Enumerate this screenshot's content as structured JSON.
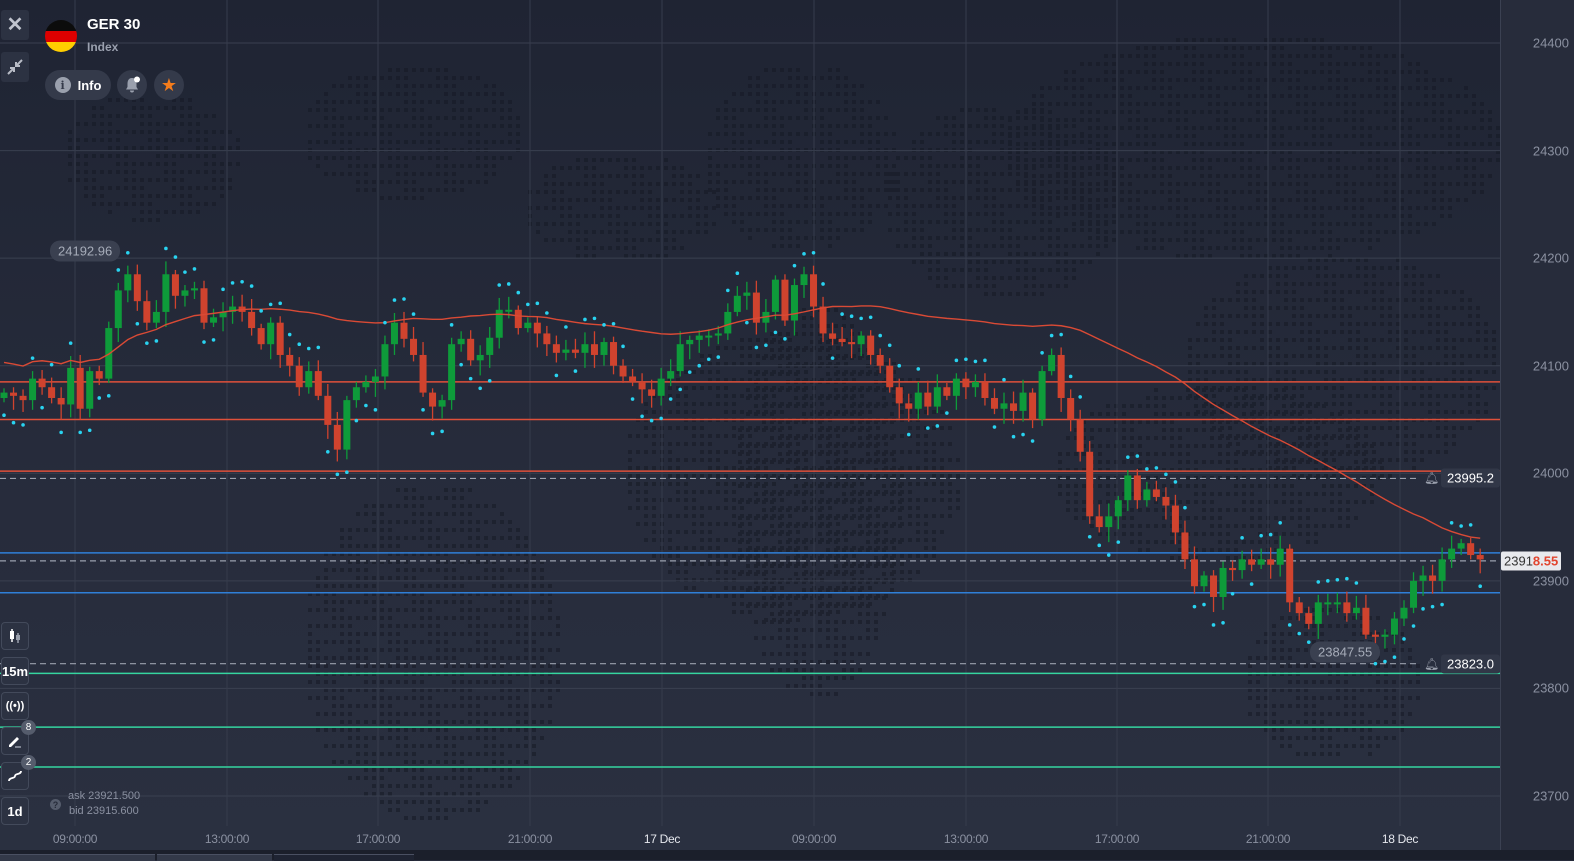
{
  "header": {
    "title": "GER 30",
    "subtitle": "Index",
    "info_label": "Info",
    "flag": "germany-flag"
  },
  "left_toolbar": {
    "close_icon": "×",
    "collapse_icon": "collapse-arrows",
    "chart_type_icon": "candlestick",
    "timeframe": "15m",
    "signals_icon": "((•))",
    "drawings_badge": "8",
    "indicators_badge": "2",
    "period": "1d"
  },
  "quote": {
    "ask_label": "ask 23921.500",
    "bid_label": "bid 23915.600",
    "help_icon": "?"
  },
  "current_price": {
    "prefix": "2391",
    "accent": "8.55",
    "value": 23918.55
  },
  "alerts": [
    {
      "label": "23995.2",
      "value": 23995.2
    },
    {
      "label": "23823.0",
      "value": 23823.0
    }
  ],
  "high_low_tags": {
    "high": {
      "label": "24192.96",
      "value": 24192.96
    },
    "low": {
      "label": "23847.55",
      "value": 23847.55
    }
  },
  "price_axis": {
    "ticks": [
      "24400",
      "24300",
      "24200",
      "24100",
      "24000",
      "23900",
      "23800",
      "23700"
    ]
  },
  "time_axis": {
    "ticks": [
      {
        "label": "09:00:00",
        "x": 75,
        "bold": false
      },
      {
        "label": "13:00:00",
        "x": 227,
        "bold": false
      },
      {
        "label": "17:00:00",
        "x": 378,
        "bold": false
      },
      {
        "label": "21:00:00",
        "x": 530,
        "bold": false
      },
      {
        "label": "17 Dec",
        "x": 662,
        "bold": true
      },
      {
        "label": "09:00:00",
        "x": 814,
        "bold": false
      },
      {
        "label": "13:00:00",
        "x": 966,
        "bold": false
      },
      {
        "label": "17:00:00",
        "x": 1117,
        "bold": false
      },
      {
        "label": "21:00:00",
        "x": 1268,
        "bold": false
      },
      {
        "label": "18 Dec",
        "x": 1400,
        "bold": true
      }
    ]
  },
  "colors": {
    "up": "#0e9b3a",
    "down": "#d0432e",
    "sar": "#29d3f0",
    "ma": "#d94a35",
    "res_line": "#e0503a",
    "blue_line": "#2f7fd8",
    "green_line": "#35d6a0"
  },
  "horizontal_lines": {
    "red": [
      24085,
      24050,
      24002
    ],
    "blue": [
      23926,
      23889
    ],
    "green": [
      23814,
      23764,
      23727
    ]
  },
  "chart_data": {
    "type": "candlestick",
    "title": "GER 30",
    "ylim": [
      23675,
      24440
    ],
    "y_ticks": [
      24400,
      24300,
      24200,
      24100,
      24000,
      23900,
      23800,
      23700
    ],
    "x_ticks": [
      "09:00:00",
      "13:00:00",
      "17:00:00",
      "21:00:00",
      "17 Dec",
      "09:00:00",
      "13:00:00",
      "17:00:00",
      "21:00:00",
      "18 Dec"
    ],
    "indicators": [
      "Moving Average",
      "Parabolic SAR"
    ],
    "closes": [
      24075,
      24072,
      24068,
      24088,
      24080,
      24070,
      24064,
      24098,
      24060,
      24095,
      24088,
      24135,
      24170,
      24185,
      24160,
      24140,
      24150,
      24185,
      24165,
      24170,
      24172,
      24140,
      24145,
      24150,
      24155,
      24150,
      24135,
      24120,
      24140,
      24110,
      24100,
      24080,
      24095,
      24072,
      24045,
      24022,
      24068,
      24080,
      24085,
      24090,
      24120,
      24140,
      24125,
      24110,
      24075,
      24062,
      24068,
      24120,
      24125,
      24105,
      24110,
      24126,
      24152,
      24152,
      24135,
      24140,
      24130,
      24120,
      24112,
      24115,
      24112,
      24120,
      24110,
      24122,
      24100,
      24090,
      24085,
      24078,
      24072,
      24088,
      24095,
      24120,
      24124,
      24128,
      24128,
      24130,
      24150,
      24165,
      24168,
      24140,
      24150,
      24180,
      24142,
      24175,
      24185,
      24155,
      24130,
      24125,
      24122,
      24120,
      24128,
      24110,
      24100,
      24080,
      24065,
      24060,
      24075,
      24062,
      24080,
      24072,
      24088,
      24080,
      24085,
      24070,
      24060,
      24065,
      24058,
      24075,
      24050,
      24095,
      24110,
      24070,
      24050,
      24020,
      23960,
      23950,
      23960,
      23975,
      23998,
      23975,
      23985,
      23978,
      23970,
      23945,
      23920,
      23895,
      23905,
      23885,
      23912,
      23910,
      23920,
      23915,
      23920,
      23915,
      23930,
      23880,
      23870,
      23860,
      23880,
      23880,
      23880,
      23870,
      23875,
      23850,
      23848,
      23850,
      23865,
      23875,
      23900,
      23905,
      23900,
      23920,
      23930,
      23935,
      23924,
      23920
    ]
  }
}
